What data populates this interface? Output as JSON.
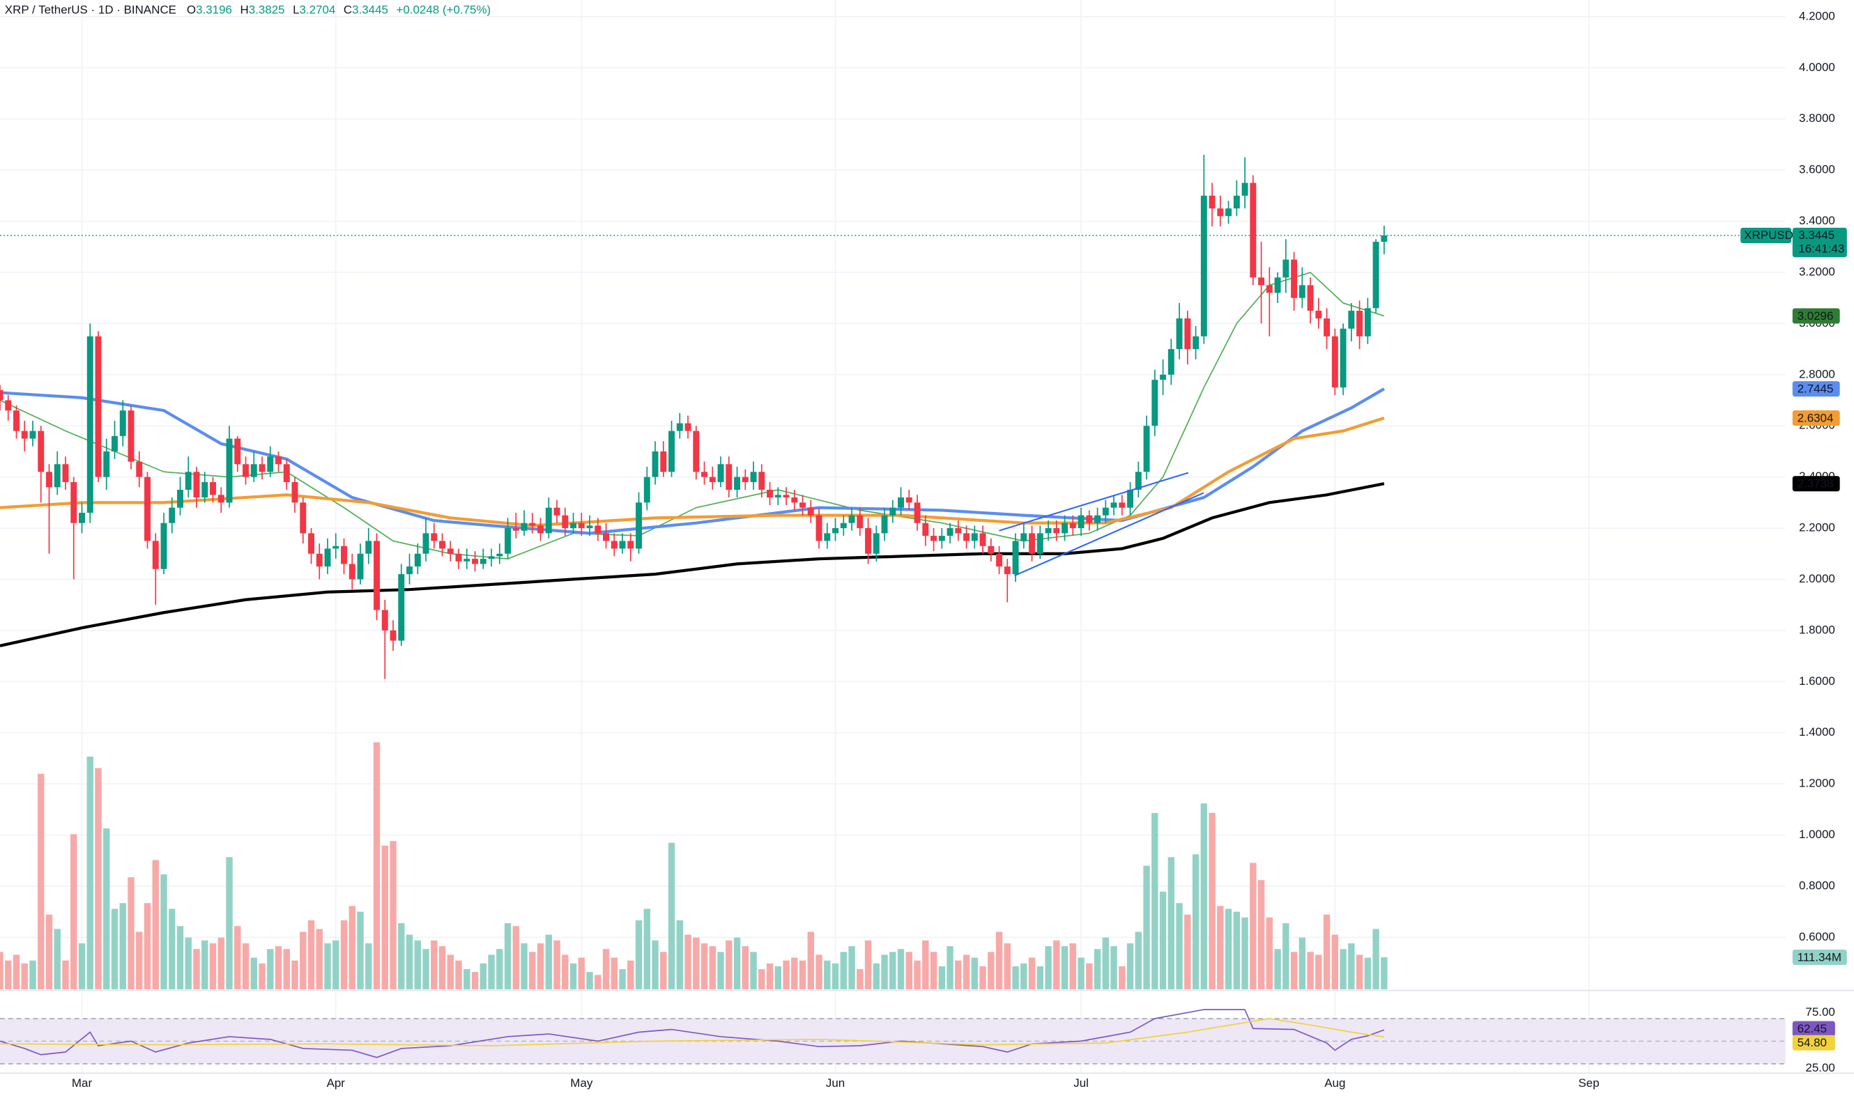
{
  "chart_data": {
    "type": "candlestick",
    "title": "XRP / TetherUS · 1D · BINANCE",
    "ohlc_letters": [
      "O",
      "H",
      "L",
      "C"
    ],
    "change": "+0.0248 (+0.75%)",
    "symbol": "XRPUSDT",
    "countdown": "16:41:43",
    "grid": true,
    "up_color": "#089981",
    "down_color": "#f23645",
    "xlim": [
      0,
      218
    ],
    "xticks": [
      {
        "value": 10,
        "label": "Mar"
      },
      {
        "value": 41,
        "label": "Apr"
      },
      {
        "value": 71,
        "label": "May"
      },
      {
        "value": 102,
        "label": "Jun"
      },
      {
        "value": 132,
        "label": "Jul"
      },
      {
        "value": 163,
        "label": "Aug"
      },
      {
        "value": 194,
        "label": "Sep"
      }
    ],
    "ylim": [
      0.397,
      4.265
    ],
    "yticks": [
      {
        "value": 0.6,
        "label": "0.6000"
      },
      {
        "value": 0.8,
        "label": "0.8000"
      },
      {
        "value": 1,
        "label": "1.0000"
      },
      {
        "value": 1.2,
        "label": "1.2000"
      },
      {
        "value": 1.4,
        "label": "1.4000"
      },
      {
        "value": 1.6,
        "label": "1.6000"
      },
      {
        "value": 1.8,
        "label": "1.8000"
      },
      {
        "value": 2,
        "label": "2.0000"
      },
      {
        "value": 2.2,
        "label": "2.2000"
      },
      {
        "value": 2.4,
        "label": "2.4000"
      },
      {
        "value": 2.6,
        "label": "2.6000"
      },
      {
        "value": 2.8,
        "label": "2.8000"
      },
      {
        "value": 3,
        "label": "3.0000"
      },
      {
        "value": 3.2,
        "label": "3.2000"
      },
      {
        "value": 3.4,
        "label": "3.4000"
      },
      {
        "value": 3.6,
        "label": "3.6000"
      },
      {
        "value": 3.8,
        "label": "3.8000"
      },
      {
        "value": 4,
        "label": "4.0000"
      },
      {
        "value": 4.2,
        "label": "4.2000"
      }
    ],
    "open": [
      2.74,
      2.7,
      2.66,
      2.58,
      2.55,
      2.58,
      2.42,
      2.36,
      2.45,
      2.38,
      2.22,
      2.26,
      2.95,
      2.4,
      2.5,
      2.56,
      2.66,
      2.46,
      2.4,
      2.15,
      2.04,
      2.22,
      2.28,
      2.35,
      2.42,
      2.32,
      2.38,
      2.33,
      2.3,
      2.55,
      2.45,
      2.4,
      2.45,
      2.42,
      2.48,
      2.45,
      2.38,
      2.3,
      2.18,
      2.1,
      2.05,
      2.12,
      2.13,
      2.06,
      2.0,
      2.1,
      2.15,
      1.88,
      1.8,
      1.76,
      2.02,
      2.05,
      2.1,
      2.18,
      2.15,
      2.12,
      2.1,
      2.07,
      2.08,
      2.06,
      2.08,
      2.09,
      2.1,
      2.2,
      2.19,
      2.22,
      2.21,
      2.18,
      2.28,
      2.25,
      2.2,
      2.22,
      2.2,
      2.21,
      2.18,
      2.15,
      2.12,
      2.15,
      2.12,
      2.3,
      2.4,
      2.5,
      2.42,
      2.58,
      2.61,
      2.58,
      2.42,
      2.4,
      2.38,
      2.45,
      2.35,
      2.4,
      2.38,
      2.42,
      2.35,
      2.32,
      2.33,
      2.32,
      2.3,
      2.28,
      2.25,
      2.15,
      2.18,
      2.2,
      2.22,
      2.25,
      2.2,
      2.1,
      2.18,
      2.25,
      2.28,
      2.32,
      2.3,
      2.22,
      2.17,
      2.15,
      2.17,
      2.2,
      2.18,
      2.15,
      2.18,
      2.13,
      2.1,
      2.05,
      2.02,
      2.15,
      2.18,
      2.1,
      2.18,
      2.2,
      2.18,
      2.22,
      2.2,
      2.25,
      2.22,
      2.25,
      2.28,
      2.3,
      2.28,
      2.35,
      2.42,
      2.6,
      2.78,
      2.8,
      2.9,
      3.02,
      2.9,
      2.95,
      3.5,
      3.45,
      3.42,
      3.45,
      3.5,
      3.55,
      3.18,
      3.15,
      3.12,
      3.18,
      3.25,
      3.1,
      3.15,
      3.05,
      3.02,
      2.95,
      2.75,
      2.98,
      3.05,
      2.95,
      3.06,
      3.3196
    ],
    "high": [
      2.76,
      2.72,
      2.68,
      2.62,
      2.62,
      2.6,
      2.45,
      2.5,
      2.48,
      2.4,
      2.3,
      3.0,
      2.97,
      2.55,
      2.62,
      2.7,
      2.68,
      2.5,
      2.42,
      2.18,
      2.26,
      2.32,
      2.4,
      2.48,
      2.44,
      2.42,
      2.4,
      2.36,
      2.6,
      2.56,
      2.48,
      2.5,
      2.48,
      2.52,
      2.5,
      2.47,
      2.4,
      2.32,
      2.2,
      2.14,
      2.16,
      2.18,
      2.16,
      2.1,
      2.14,
      2.2,
      2.18,
      1.92,
      1.84,
      2.06,
      2.1,
      2.14,
      2.24,
      2.22,
      2.18,
      2.15,
      2.12,
      2.12,
      2.11,
      2.12,
      2.12,
      2.14,
      2.24,
      2.26,
      2.27,
      2.26,
      2.24,
      2.32,
      2.31,
      2.28,
      2.26,
      2.26,
      2.25,
      2.24,
      2.22,
      2.18,
      2.18,
      2.18,
      2.34,
      2.44,
      2.54,
      2.54,
      2.62,
      2.65,
      2.64,
      2.6,
      2.46,
      2.44,
      2.48,
      2.48,
      2.44,
      2.43,
      2.46,
      2.45,
      2.38,
      2.36,
      2.36,
      2.35,
      2.33,
      2.31,
      2.28,
      2.22,
      2.24,
      2.25,
      2.28,
      2.28,
      2.24,
      2.21,
      2.28,
      2.31,
      2.36,
      2.35,
      2.33,
      2.25,
      2.2,
      2.2,
      2.22,
      2.23,
      2.21,
      2.21,
      2.21,
      2.16,
      2.13,
      2.08,
      2.18,
      2.22,
      2.21,
      2.21,
      2.23,
      2.23,
      2.25,
      2.25,
      2.28,
      2.27,
      2.28,
      2.31,
      2.33,
      2.33,
      2.38,
      2.46,
      2.64,
      2.82,
      2.86,
      2.94,
      3.08,
      3.05,
      2.99,
      3.66,
      3.55,
      3.5,
      3.48,
      3.56,
      3.65,
      3.58,
      3.32,
      3.22,
      3.2,
      3.33,
      3.28,
      3.22,
      3.18,
      3.1,
      3.06,
      2.98,
      3.0,
      3.08,
      3.09,
      3.1,
      3.33,
      3.3825
    ],
    "low": [
      2.66,
      2.62,
      2.55,
      2.5,
      2.52,
      2.3,
      2.1,
      2.33,
      2.35,
      2.0,
      2.18,
      2.22,
      2.38,
      2.35,
      2.47,
      2.52,
      2.43,
      2.36,
      2.12,
      1.9,
      2.02,
      2.18,
      2.25,
      2.32,
      2.28,
      2.3,
      2.3,
      2.26,
      2.28,
      2.42,
      2.37,
      2.38,
      2.39,
      2.4,
      2.42,
      2.35,
      2.26,
      2.14,
      2.06,
      2.0,
      2.02,
      2.08,
      2.02,
      1.96,
      1.98,
      2.06,
      1.84,
      1.61,
      1.72,
      1.74,
      1.98,
      2.02,
      2.07,
      2.12,
      2.09,
      2.07,
      2.04,
      2.04,
      2.03,
      2.04,
      2.05,
      2.06,
      2.08,
      2.16,
      2.17,
      2.18,
      2.15,
      2.16,
      2.22,
      2.17,
      2.18,
      2.17,
      2.17,
      2.15,
      2.12,
      2.09,
      2.1,
      2.07,
      2.1,
      2.27,
      2.37,
      2.4,
      2.4,
      2.55,
      2.55,
      2.39,
      2.37,
      2.35,
      2.36,
      2.32,
      2.32,
      2.35,
      2.35,
      2.32,
      2.29,
      2.29,
      2.29,
      2.27,
      2.25,
      2.22,
      2.12,
      2.12,
      2.15,
      2.17,
      2.19,
      2.17,
      2.06,
      2.07,
      2.15,
      2.22,
      2.25,
      2.27,
      2.19,
      2.13,
      2.11,
      2.12,
      2.14,
      2.15,
      2.12,
      2.12,
      2.1,
      2.07,
      2.02,
      1.91,
      1.99,
      2.12,
      2.07,
      2.08,
      2.15,
      2.15,
      2.15,
      2.17,
      2.17,
      2.19,
      2.19,
      2.22,
      2.25,
      2.25,
      2.25,
      2.32,
      2.39,
      2.56,
      2.72,
      2.76,
      2.86,
      2.84,
      2.86,
      2.92,
      3.38,
      3.38,
      3.39,
      3.42,
      3.45,
      3.15,
      3.0,
      2.95,
      3.08,
      3.12,
      3.05,
      3.06,
      3.0,
      2.98,
      2.9,
      2.72,
      2.72,
      2.93,
      2.9,
      2.92,
      3.04,
      3.2704
    ],
    "close": [
      2.7,
      2.66,
      2.58,
      2.55,
      2.58,
      2.42,
      2.36,
      2.45,
      2.38,
      2.22,
      2.26,
      2.95,
      2.4,
      2.5,
      2.56,
      2.66,
      2.46,
      2.4,
      2.15,
      2.04,
      2.22,
      2.28,
      2.35,
      2.42,
      2.32,
      2.38,
      2.33,
      2.3,
      2.55,
      2.45,
      2.4,
      2.45,
      2.42,
      2.48,
      2.45,
      2.38,
      2.3,
      2.18,
      2.1,
      2.05,
      2.12,
      2.13,
      2.06,
      2.0,
      2.1,
      2.15,
      1.88,
      1.8,
      1.76,
      2.02,
      2.05,
      2.1,
      2.18,
      2.15,
      2.12,
      2.1,
      2.07,
      2.08,
      2.06,
      2.08,
      2.09,
      2.1,
      2.2,
      2.19,
      2.22,
      2.21,
      2.18,
      2.28,
      2.25,
      2.2,
      2.22,
      2.2,
      2.21,
      2.18,
      2.15,
      2.12,
      2.15,
      2.12,
      2.3,
      2.4,
      2.5,
      2.42,
      2.58,
      2.61,
      2.58,
      2.42,
      2.4,
      2.38,
      2.45,
      2.35,
      2.4,
      2.38,
      2.42,
      2.35,
      2.32,
      2.33,
      2.32,
      2.3,
      2.28,
      2.25,
      2.15,
      2.18,
      2.2,
      2.22,
      2.25,
      2.2,
      2.1,
      2.18,
      2.25,
      2.28,
      2.32,
      2.3,
      2.22,
      2.17,
      2.15,
      2.17,
      2.2,
      2.18,
      2.15,
      2.18,
      2.13,
      2.1,
      2.05,
      2.02,
      2.15,
      2.18,
      2.1,
      2.18,
      2.2,
      2.18,
      2.22,
      2.2,
      2.25,
      2.22,
      2.25,
      2.28,
      2.3,
      2.28,
      2.35,
      2.42,
      2.6,
      2.78,
      2.8,
      2.9,
      3.02,
      2.9,
      2.95,
      3.5,
      3.45,
      3.42,
      3.45,
      3.5,
      3.55,
      3.18,
      3.15,
      3.12,
      3.18,
      3.25,
      3.1,
      3.15,
      3.05,
      3.02,
      2.95,
      2.75,
      2.98,
      3.05,
      2.95,
      3.06,
      3.3196,
      3.3445
    ],
    "ma": [
      {
        "color": "#4caf50",
        "width": 1,
        "x": [
          0,
          8,
          14,
          20,
          28,
          35,
          42,
          48,
          55,
          62,
          70,
          78,
          85,
          95,
          105,
          115,
          125,
          133,
          138,
          142,
          147,
          151,
          155,
          160,
          164,
          169
        ],
        "values": [
          2.7,
          2.58,
          2.5,
          2.42,
          2.4,
          2.42,
          2.28,
          2.15,
          2.1,
          2.08,
          2.18,
          2.17,
          2.28,
          2.35,
          2.27,
          2.22,
          2.15,
          2.18,
          2.25,
          2.4,
          2.75,
          3.0,
          3.15,
          3.2,
          3.08,
          3.0296
        ],
        "badge_color": "#2e7d32"
      },
      {
        "color": "#5b8def",
        "width": 2.5,
        "x": [
          0,
          10,
          20,
          27,
          35,
          43,
          53,
          60,
          72,
          85,
          100,
          115,
          125,
          137,
          147,
          153,
          159,
          165,
          169
        ],
        "values": [
          2.73,
          2.71,
          2.66,
          2.53,
          2.47,
          2.32,
          2.23,
          2.21,
          2.18,
          2.22,
          2.28,
          2.27,
          2.25,
          2.23,
          2.32,
          2.44,
          2.58,
          2.67,
          2.7445
        ],
        "badge_color": "#5b8def"
      },
      {
        "color": "#f39c32",
        "width": 2.5,
        "x": [
          0,
          10,
          20,
          35,
          45,
          55,
          65,
          80,
          95,
          110,
          125,
          135,
          143,
          150,
          158,
          164,
          169
        ],
        "values": [
          2.28,
          2.3,
          2.3,
          2.33,
          2.3,
          2.24,
          2.21,
          2.24,
          2.25,
          2.25,
          2.22,
          2.22,
          2.28,
          2.42,
          2.55,
          2.58,
          2.6304
        ],
        "badge_color": "#f39c32"
      },
      {
        "color": "#000000",
        "width": 2.5,
        "x": [
          0,
          10,
          20,
          30,
          40,
          50,
          60,
          70,
          80,
          90,
          100,
          110,
          120,
          130,
          137,
          142,
          148,
          155,
          162,
          169
        ],
        "values": [
          1.74,
          1.81,
          1.87,
          1.92,
          1.95,
          1.96,
          1.98,
          2.0,
          2.02,
          2.06,
          2.08,
          2.09,
          2.1,
          2.1,
          2.12,
          2.16,
          2.24,
          2.3,
          2.33,
          2.3738
        ],
        "badge_color": "#000000"
      }
    ],
    "volume": {
      "ylim": [
        0,
        1000
      ],
      "last_label": "111.34M",
      "up_color": "#92d2c6",
      "down_color": "#f7a9a7",
      "values": [
        130,
        100,
        120,
        90,
        100,
        750,
        260,
        210,
        100,
        540,
        160,
        810,
        770,
        560,
        280,
        300,
        390,
        200,
        300,
        450,
        400,
        280,
        220,
        180,
        140,
        170,
        160,
        180,
        460,
        220,
        160,
        110,
        90,
        140,
        150,
        140,
        100,
        200,
        240,
        210,
        160,
        170,
        240,
        290,
        270,
        160,
        860,
        500,
        516,
        230,
        190,
        170,
        140,
        170,
        150,
        120,
        100,
        70,
        60,
        90,
        120,
        140,
        230,
        220,
        160,
        130,
        160,
        190,
        170,
        120,
        90,
        110,
        60,
        50,
        140,
        110,
        70,
        100,
        240,
        280,
        170,
        130,
        510,
        240,
        190,
        180,
        160,
        150,
        130,
        170,
        180,
        150,
        130,
        70,
        90,
        80,
        100,
        110,
        100,
        200,
        120,
        100,
        90,
        130,
        150,
        70,
        170,
        90,
        120,
        130,
        140,
        130,
        100,
        170,
        130,
        80,
        150,
        100,
        120,
        110,
        80,
        130,
        200,
        160,
        80,
        90,
        110,
        80,
        150,
        170,
        150,
        160,
        110,
        90,
        140,
        180,
        150,
        80,
        160,
        200,
        430,
        614,
        340,
        460,
        300,
        260,
        470,
        647,
        614,
        290,
        280,
        270,
        250,
        440,
        380,
        250,
        140,
        230,
        130,
        180,
        130,
        120,
        260,
        190,
        140,
        160,
        120,
        110,
        210,
        111.34
      ]
    },
    "rsi": {
      "ylim": [
        12,
        97
      ],
      "yticks": [
        {
          "value": 75,
          "label": "75.00"
        },
        {
          "value": 25,
          "label": "25.00"
        }
      ],
      "midline": 50,
      "band_color": "#ede7f6",
      "series": [
        {
          "color": "#7e57c2",
          "x": [
            0,
            3,
            5,
            8,
            11,
            12,
            16,
            19,
            23,
            28,
            33,
            37,
            43,
            46,
            49,
            55,
            62,
            67,
            73,
            78,
            82,
            88,
            95,
            100,
            105,
            110,
            115,
            120,
            123,
            126,
            132,
            138,
            141,
            147,
            152,
            153,
            158,
            162,
            163,
            165,
            167,
            169
          ],
          "values": [
            50,
            42,
            35,
            38,
            60,
            45,
            50,
            38,
            48,
            55,
            52,
            42,
            40,
            32,
            42,
            45,
            55,
            58,
            50,
            60,
            63,
            55,
            50,
            44,
            45,
            50,
            47,
            44,
            38,
            47,
            50,
            60,
            75,
            85,
            85,
            64,
            63,
            48,
            40,
            52,
            56,
            62.45
          ]
        },
        {
          "color": "#f2d23c",
          "x": [
            0,
            20,
            40,
            60,
            80,
            100,
            120,
            135,
            145,
            155,
            160,
            165,
            169
          ],
          "values": [
            47,
            46,
            47,
            45,
            50,
            52,
            46,
            48,
            60,
            75,
            68,
            60,
            54.8
          ],
          "last_label": "54.80"
        }
      ]
    }
  }
}
